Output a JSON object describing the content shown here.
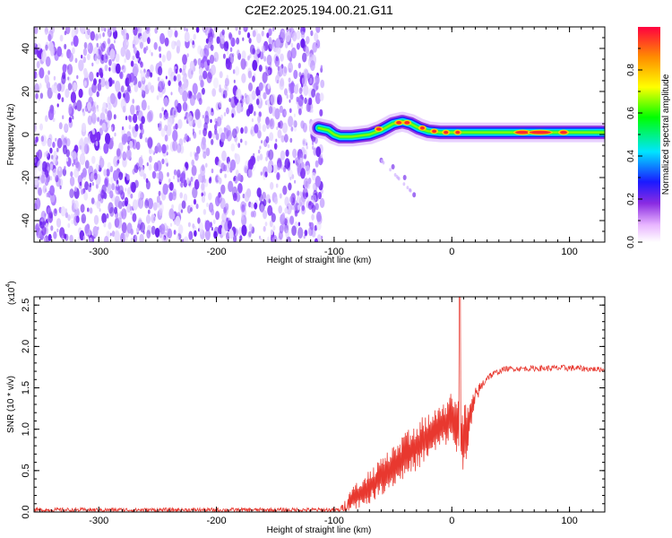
{
  "figure": {
    "title": "C2E2.2025.194.00.21.G11"
  },
  "chart_data": [
    {
      "type": "heatmap",
      "xlabel": "Height of straight line (km)",
      "ylabel": "Frequency (Hz)",
      "xlim": [
        -355,
        130
      ],
      "ylim": [
        -50,
        50
      ],
      "xticks": [
        -300,
        -200,
        -100,
        0,
        100
      ],
      "yticks": [
        -40,
        -20,
        0,
        20,
        40
      ],
      "noise_region_x": [
        -355,
        -113
      ],
      "ridge": [
        {
          "x": -113,
          "y": 3
        },
        {
          "x": -105,
          "y": 2
        },
        {
          "x": -100,
          "y": 0
        },
        {
          "x": -95,
          "y": -1
        },
        {
          "x": -85,
          "y": -1
        },
        {
          "x": -70,
          "y": 0
        },
        {
          "x": -60,
          "y": 2
        },
        {
          "x": -50,
          "y": 5
        },
        {
          "x": -42,
          "y": 6
        },
        {
          "x": -35,
          "y": 5
        },
        {
          "x": -28,
          "y": 3
        },
        {
          "x": -20,
          "y": 1.5
        },
        {
          "x": -10,
          "y": 1
        },
        {
          "x": 0,
          "y": 1
        },
        {
          "x": 20,
          "y": 1
        },
        {
          "x": 60,
          "y": 1
        },
        {
          "x": 100,
          "y": 1
        },
        {
          "x": 130,
          "y": 1
        }
      ],
      "branch": [
        {
          "x": -60,
          "y": -12
        },
        {
          "x": -50,
          "y": -15
        },
        {
          "x": -40,
          "y": -20
        },
        {
          "x": -32,
          "y": -28
        }
      ],
      "grid": false
    },
    {
      "type": "colorbar",
      "label": "Normalized spectral amplitude",
      "range": [
        0,
        1
      ],
      "ticks": [
        "0.0",
        "0.2",
        "0.4",
        "0.6",
        "0.8"
      ],
      "tick_values": [
        0,
        0.2,
        0.4,
        0.6,
        0.8
      ]
    },
    {
      "type": "line",
      "xlabel": "Height of straight line (km)",
      "ylabel": "SNR (10 * v/v)",
      "scale_label": "(x10",
      "scale_exp": "4",
      "xlim": [
        -355,
        130
      ],
      "ylim": [
        0,
        2.6
      ],
      "xticks": [
        -300,
        -200,
        -100,
        0,
        100
      ],
      "yticks": [
        "0.0",
        "0.5",
        "1.0",
        "1.5",
        "2.0",
        "2.5"
      ],
      "ytick_values": [
        0,
        0.5,
        1.0,
        1.5,
        2.0,
        2.5
      ],
      "color": "#e8382f",
      "envelope": [
        {
          "x": -355,
          "lo": 0.0,
          "hi": 0.05
        },
        {
          "x": -95,
          "lo": 0.0,
          "hi": 0.05
        },
        {
          "x": -85,
          "lo": 0.02,
          "hi": 0.3
        },
        {
          "x": -70,
          "lo": 0.1,
          "hi": 0.5
        },
        {
          "x": -50,
          "lo": 0.3,
          "hi": 0.8
        },
        {
          "x": -30,
          "lo": 0.5,
          "hi": 1.1
        },
        {
          "x": -10,
          "lo": 0.75,
          "hi": 1.3
        },
        {
          "x": 0,
          "lo": 0.85,
          "hi": 1.45
        },
        {
          "x": 10,
          "lo": 0.45,
          "hi": 1.3
        },
        {
          "x": 20,
          "lo": 1.3,
          "hi": 1.5
        },
        {
          "x": 30,
          "lo": 1.58,
          "hi": 1.68
        },
        {
          "x": 45,
          "lo": 1.7,
          "hi": 1.76
        },
        {
          "x": 100,
          "lo": 1.7,
          "hi": 1.78
        },
        {
          "x": 130,
          "lo": 1.69,
          "hi": 1.75
        }
      ],
      "spike": {
        "x": 7,
        "y": 2.6
      }
    }
  ]
}
